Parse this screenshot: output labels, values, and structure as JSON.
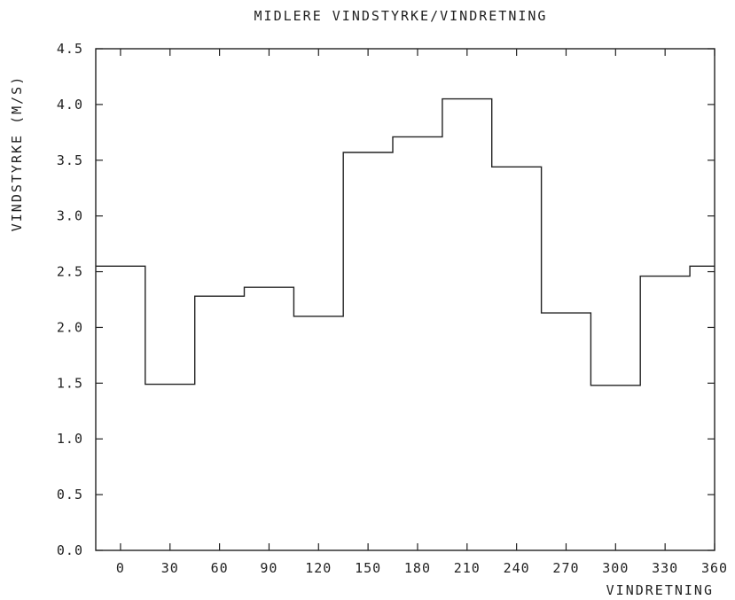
{
  "chart_data": {
    "type": "line",
    "step": true,
    "title": "MIDLERE VINDSTYRKE/VINDRETNING",
    "xlabel": "VINDRETNING",
    "ylabel": "VINDSTYRKE (M/S)",
    "xlim": [
      -15,
      360
    ],
    "ylim": [
      0,
      4.5
    ],
    "x_ticks": [
      0,
      30,
      60,
      90,
      120,
      150,
      180,
      210,
      240,
      270,
      300,
      330,
      360
    ],
    "y_ticks": [
      "0.0",
      "0.5",
      "1.0",
      "1.5",
      "2.0",
      "2.5",
      "3.0",
      "3.5",
      "4.0",
      "4.5"
    ],
    "grid": false,
    "x": [
      0,
      30,
      60,
      90,
      120,
      150,
      180,
      210,
      240,
      270,
      300,
      330,
      360
    ],
    "values": [
      2.55,
      1.49,
      2.28,
      2.36,
      2.1,
      3.57,
      3.71,
      4.05,
      3.44,
      2.13,
      1.48,
      2.46,
      2.55
    ],
    "bin_width": 30
  }
}
